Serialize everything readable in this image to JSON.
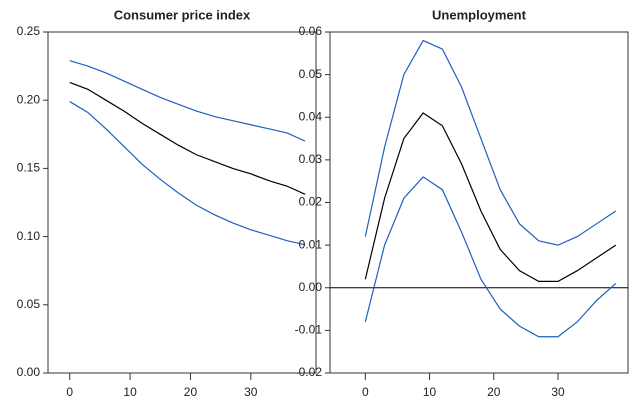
{
  "chart_data": [
    {
      "type": "line",
      "title": "Consumer price index",
      "x": [
        0,
        3,
        6,
        9,
        12,
        15,
        18,
        21,
        24,
        27,
        30,
        33,
        36,
        39
      ],
      "series": [
        {
          "color": "#1f5fbf",
          "values": [
            0.229,
            0.225,
            0.22,
            0.214,
            0.208,
            0.202,
            0.197,
            0.192,
            0.188,
            0.185,
            0.182,
            0.179,
            0.176,
            0.17
          ]
        },
        {
          "color": "#000000",
          "values": [
            0.213,
            0.208,
            0.2,
            0.192,
            0.183,
            0.175,
            0.167,
            0.16,
            0.155,
            0.15,
            0.146,
            0.141,
            0.137,
            0.131
          ]
        },
        {
          "color": "#1f5fbf",
          "values": [
            0.199,
            0.191,
            0.179,
            0.166,
            0.153,
            0.142,
            0.132,
            0.123,
            0.116,
            0.11,
            0.105,
            0.101,
            0.097,
            0.094
          ]
        }
      ],
      "xlim": [
        -3.6,
        40.8
      ],
      "xticks": [
        0,
        10,
        20,
        30
      ],
      "ylim": [
        0,
        0.25
      ],
      "yticks": [
        {
          "value": 0,
          "label": "0.00"
        },
        {
          "value": 0.05,
          "label": "0.05"
        },
        {
          "value": 0.1,
          "label": "0.10"
        },
        {
          "value": 0.15,
          "label": "0.15"
        },
        {
          "value": 0.2,
          "label": "0.20"
        },
        {
          "value": 0.25,
          "label": "0.25"
        }
      ]
    },
    {
      "type": "line",
      "title": "Unemployment",
      "x": [
        0,
        3,
        6,
        9,
        12,
        15,
        18,
        21,
        24,
        27,
        30,
        33,
        36,
        39
      ],
      "series": [
        {
          "color": "#1f5fbf",
          "values": [
            0.012,
            0.033,
            0.05,
            0.058,
            0.056,
            0.047,
            0.035,
            0.023,
            0.015,
            0.011,
            0.01,
            0.012,
            0.015,
            0.018
          ]
        },
        {
          "color": "#000000",
          "values": [
            0.002,
            0.021,
            0.035,
            0.041,
            0.038,
            0.029,
            0.018,
            0.009,
            0.004,
            0.0015,
            0.0015,
            0.004,
            0.007,
            0.01
          ]
        },
        {
          "color": "#1f5fbf",
          "values": [
            -0.008,
            0.01,
            0.021,
            0.026,
            0.023,
            0.013,
            0.002,
            -0.005,
            -0.009,
            -0.0115,
            -0.0115,
            -0.008,
            -0.003,
            0.001
          ]
        }
      ],
      "reference_line": 0,
      "xlim": [
        -5.5,
        40.9
      ],
      "xticks": [
        0,
        10,
        20,
        30
      ],
      "ylim": [
        -0.02,
        0.06
      ],
      "yticks": [
        {
          "value": -0.02,
          "label": "-0.02"
        },
        {
          "value": -0.01,
          "label": "-0.01"
        },
        {
          "value": 0,
          "label": "0.00"
        },
        {
          "value": 0.01,
          "label": "0.01"
        },
        {
          "value": 0.02,
          "label": "0.02"
        },
        {
          "value": 0.03,
          "label": "0.03"
        },
        {
          "value": 0.04,
          "label": "0.04"
        },
        {
          "value": 0.05,
          "label": "0.05"
        },
        {
          "value": 0.06,
          "label": "0.06"
        }
      ]
    }
  ]
}
